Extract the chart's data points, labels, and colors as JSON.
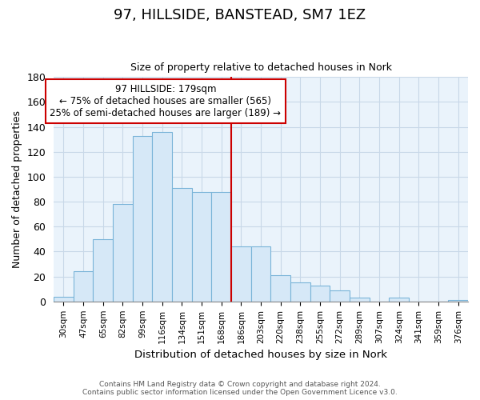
{
  "title": "97, HILLSIDE, BANSTEAD, SM7 1EZ",
  "subtitle": "Size of property relative to detached houses in Nork",
  "xlabel": "Distribution of detached houses by size in Nork",
  "ylabel": "Number of detached properties",
  "bar_labels": [
    "30sqm",
    "47sqm",
    "65sqm",
    "82sqm",
    "99sqm",
    "116sqm",
    "134sqm",
    "151sqm",
    "168sqm",
    "186sqm",
    "203sqm",
    "220sqm",
    "238sqm",
    "255sqm",
    "272sqm",
    "289sqm",
    "307sqm",
    "324sqm",
    "341sqm",
    "359sqm",
    "376sqm"
  ],
  "bar_values": [
    4,
    24,
    50,
    78,
    133,
    136,
    91,
    88,
    88,
    44,
    44,
    21,
    15,
    13,
    9,
    3,
    0,
    3,
    0,
    0,
    1
  ],
  "bar_color": "#d6e8f7",
  "bar_edge_color": "#7ab4d8",
  "vline_x_index": 9,
  "vline_label": "97 HILLSIDE: 179sqm",
  "annotation_line1": "← 75% of detached houses are smaller (565)",
  "annotation_line2": "25% of semi-detached houses are larger (189) →",
  "annotation_box_color": "#ffffff",
  "annotation_box_edge": "#cc0000",
  "vline_color": "#cc0000",
  "footer1": "Contains HM Land Registry data © Crown copyright and database right 2024.",
  "footer2": "Contains public sector information licensed under the Open Government Licence v3.0.",
  "ylim": [
    0,
    180
  ],
  "yticks": [
    0,
    20,
    40,
    60,
    80,
    100,
    120,
    140,
    160,
    180
  ],
  "grid_color": "#c8d8e8",
  "background_color": "#eaf3fb"
}
